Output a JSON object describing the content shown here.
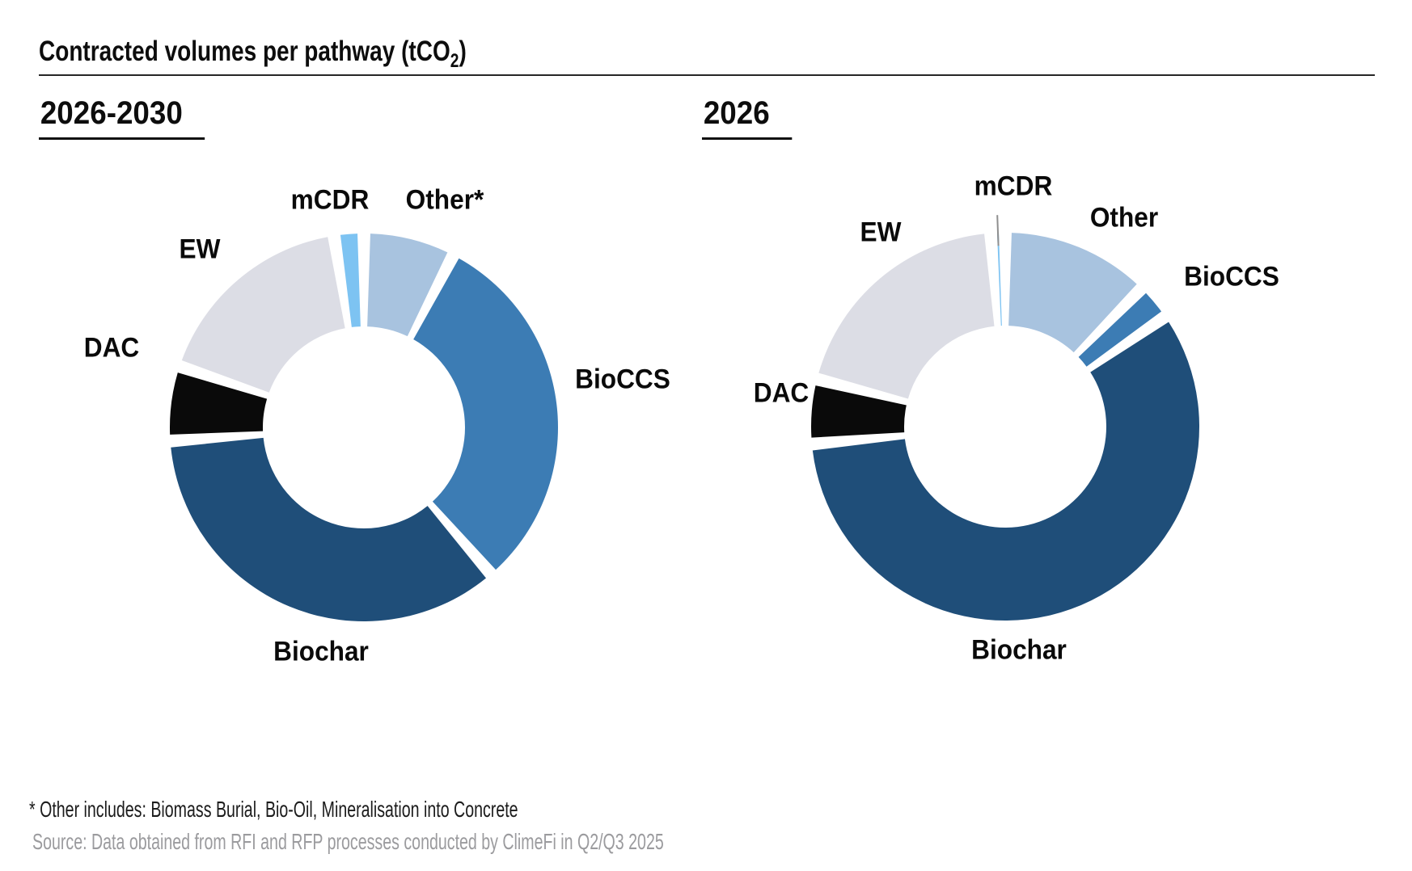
{
  "header": {
    "title_prefix": "Contracted volumes per pathway (tCO",
    "title_subscript": "2",
    "title_suffix": ")"
  },
  "chart_data": {
    "type": "pie",
    "variant": "donut",
    "title": "Contracted volumes per pathway (tCO2)",
    "unit": "share of contracted volume, % (estimated from arc angles; no numeric labels shown)",
    "legend_position": "outside-labels",
    "charts": [
      {
        "id": "2026-2030",
        "period_label": "2026-2030",
        "slices": [
          {
            "key": "other",
            "label": "Other*",
            "value_pct": 7.0,
            "color": "#a8c3df"
          },
          {
            "key": "bioccs",
            "label": "BioCCS",
            "value_pct": 32.0,
            "color": "#3c7cb4"
          },
          {
            "key": "biochar",
            "label": "Biochar",
            "value_pct": 36.5,
            "color": "#1f4e79"
          },
          {
            "key": "dac",
            "label": "DAC",
            "value_pct": 5.5,
            "color": "#0a0a0a"
          },
          {
            "key": "ew",
            "label": "EW",
            "value_pct": 17.5,
            "color": "#dcdde5"
          },
          {
            "key": "mcdr",
            "label": "mCDR",
            "value_pct": 1.5,
            "color": "#7dc3f2"
          }
        ]
      },
      {
        "id": "2026",
        "period_label": "2026",
        "slices": [
          {
            "key": "other",
            "label": "Other",
            "value_pct": 12.1,
            "color": "#a8c3df"
          },
          {
            "key": "bioccs",
            "label": "BioCCS",
            "value_pct": 2.1,
            "color": "#3c7cb4"
          },
          {
            "key": "biochar",
            "label": "Biochar",
            "value_pct": 61.0,
            "color": "#1f4e79"
          },
          {
            "key": "dac",
            "label": "DAC",
            "value_pct": 4.6,
            "color": "#0a0a0a"
          },
          {
            "key": "ew",
            "label": "EW",
            "value_pct": 20.1,
            "color": "#dcdde5"
          },
          {
            "key": "mcdr",
            "label": "mCDR",
            "value_pct": 0.15,
            "color": "#7dc3f2"
          }
        ]
      }
    ]
  },
  "footnotes": {
    "other_note": "* Other includes: Biomass Burial, Bio-Oil, Mineralisation into Concrete",
    "source": "Source: Data obtained from RFI and RFP processes conducted by ClimeFi in Q2/Q3 2025"
  },
  "colors": {
    "background": "#ffffff",
    "title_text": "#0d0d0d",
    "rule": "#262626",
    "source_text": "#9b9b9e",
    "leader_line": "#8f8f8f"
  }
}
